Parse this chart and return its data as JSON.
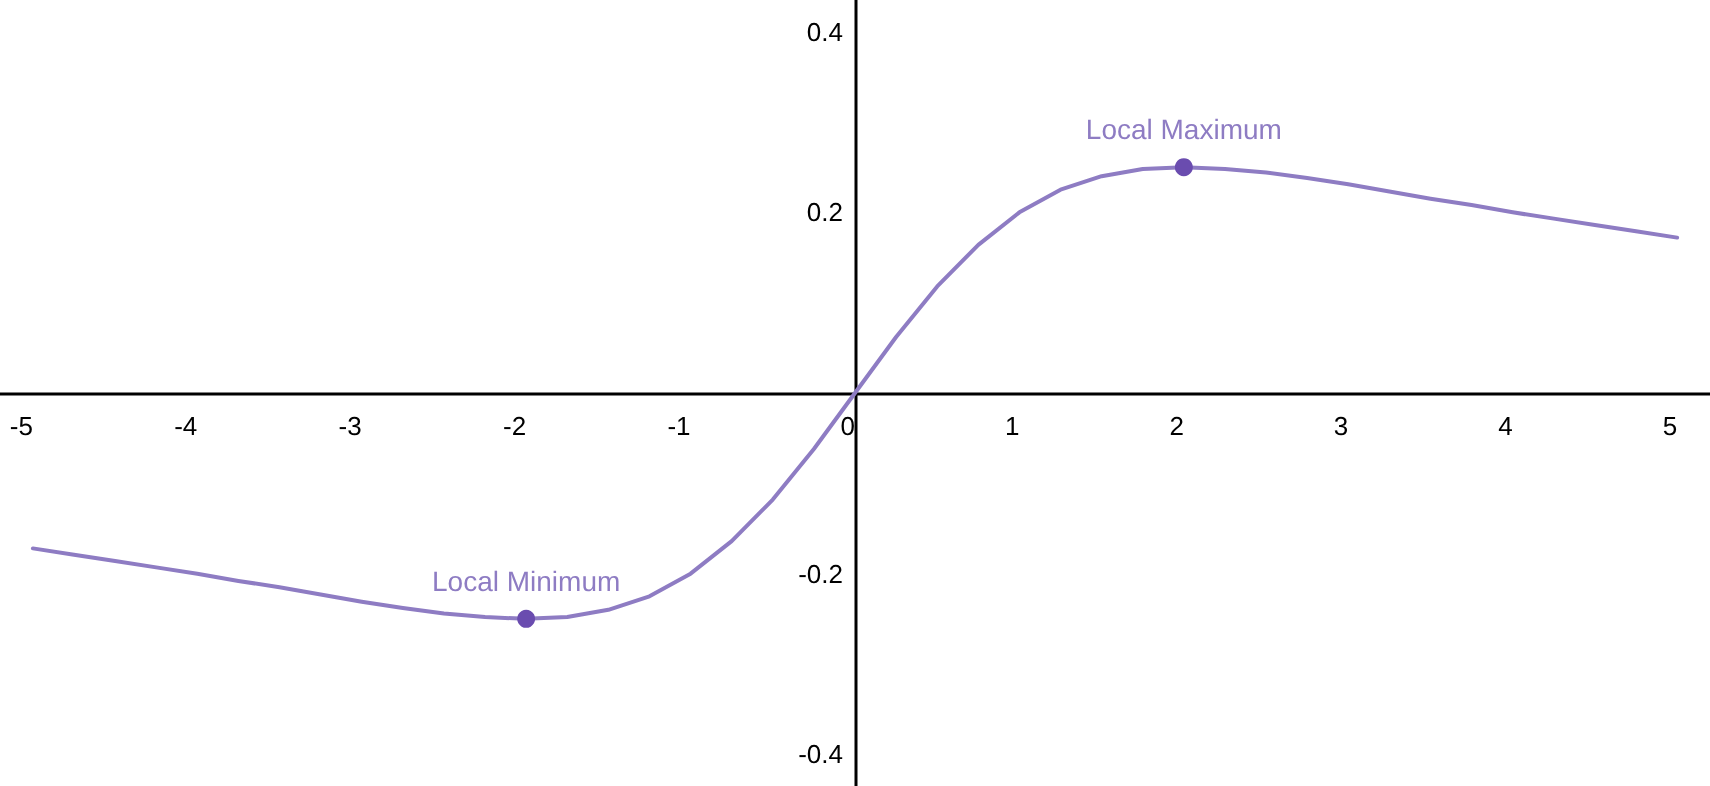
{
  "chart_data": {
    "type": "line",
    "xlim": [
      -5.2,
      5.2
    ],
    "ylim": [
      -0.435,
      0.435
    ],
    "xticks": [
      -5,
      -4,
      -3,
      -2,
      -1,
      0,
      1,
      2,
      3,
      4,
      5
    ],
    "yticks": [
      -0.4,
      -0.2,
      0.2,
      0.4
    ],
    "marker": "none",
    "line_style": "solid",
    "series": [
      {
        "type": "line",
        "color": "#8e7cc3",
        "x": [
          -5,
          -4.75,
          -4.5,
          -4.25,
          -4,
          -3.75,
          -3.5,
          -3.25,
          -3,
          -2.75,
          -2.5,
          -2.25,
          -2,
          -1.75,
          -1.5,
          -1.25,
          -1,
          -0.75,
          -0.5,
          -0.25,
          0,
          0.25,
          0.5,
          0.75,
          1,
          1.25,
          1.5,
          1.75,
          2,
          2.25,
          2.5,
          2.75,
          3,
          3.25,
          3.5,
          3.75,
          4,
          4.25,
          4.5,
          4.75,
          5
        ],
        "values": [
          -0.172,
          -0.179,
          -0.186,
          -0.193,
          -0.2,
          -0.208,
          -0.215,
          -0.223,
          -0.231,
          -0.238,
          -0.244,
          -0.248,
          -0.25,
          -0.248,
          -0.24,
          -0.225,
          -0.2,
          -0.164,
          -0.118,
          -0.062,
          0,
          0.062,
          0.118,
          0.164,
          0.2,
          0.225,
          0.24,
          0.248,
          0.25,
          0.248,
          0.244,
          0.238,
          0.231,
          0.223,
          0.215,
          0.208,
          0.2,
          0.193,
          0.186,
          0.179,
          0.172
        ]
      },
      {
        "type": "scatter",
        "color": "#6a4caf",
        "marker": "circle",
        "x": [
          -2,
          2
        ],
        "values": [
          -0.25,
          0.25
        ]
      }
    ],
    "annotations": [
      {
        "text": "Local Minimum",
        "x": -2,
        "y": -0.25
      },
      {
        "text": "Local Maximum",
        "x": 2,
        "y": 0.25
      }
    ]
  }
}
